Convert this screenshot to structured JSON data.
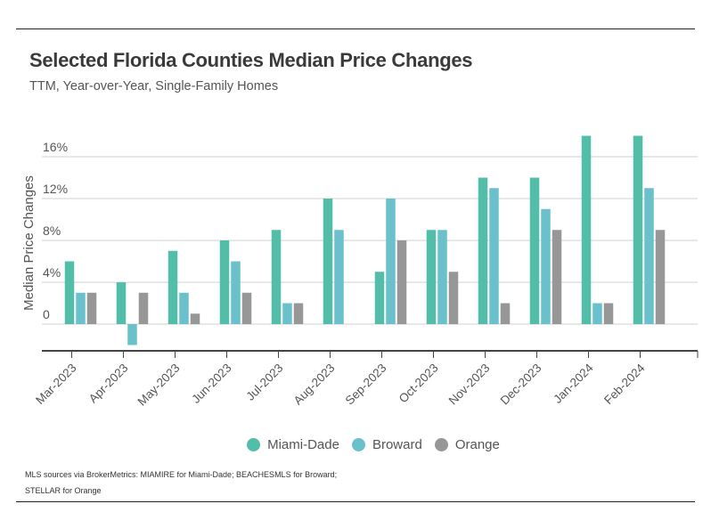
{
  "chart_data": {
    "type": "bar",
    "title": "Selected Florida Counties Median Price Changes",
    "subtitle": "TTM, Year-over-Year, Single-Family Homes",
    "xlabel": "",
    "ylabel": "Median Price Changes",
    "ylim": [
      -5,
      19
    ],
    "yticks": [
      0,
      4,
      8,
      12,
      16
    ],
    "ytick_labels": [
      "0",
      "4%",
      "8%",
      "12%",
      "16%"
    ],
    "grid": true,
    "legend_position": "bottom-center",
    "categories": [
      "Mar-2023",
      "Apr-2023",
      "May-2023",
      "Jun-2023",
      "Jul-2023",
      "Aug-2023",
      "Sep-2023",
      "Oct-2023",
      "Nov-2023",
      "Dec-2023",
      "Jan-2024",
      "Feb-2024"
    ],
    "series": [
      {
        "name": "Miami-Dade",
        "color": "#52bda9",
        "values": [
          6,
          4,
          7,
          8,
          9,
          12,
          5,
          9,
          14,
          14,
          18,
          18
        ]
      },
      {
        "name": "Broward",
        "color": "#6bc1cb",
        "values": [
          3,
          -2,
          3,
          6,
          2,
          9,
          12,
          9,
          13,
          11,
          2,
          13
        ]
      },
      {
        "name": "Orange",
        "color": "#979797",
        "values": [
          3,
          3,
          1,
          3,
          2,
          0,
          8,
          5,
          2,
          9,
          2,
          9
        ]
      }
    ],
    "source": [
      "MLS sources via BrokerMetrics: MIAMIRE for Miami-Dade; BEACHESMLS for Broward;",
      "STELLAR for Orange"
    ]
  }
}
